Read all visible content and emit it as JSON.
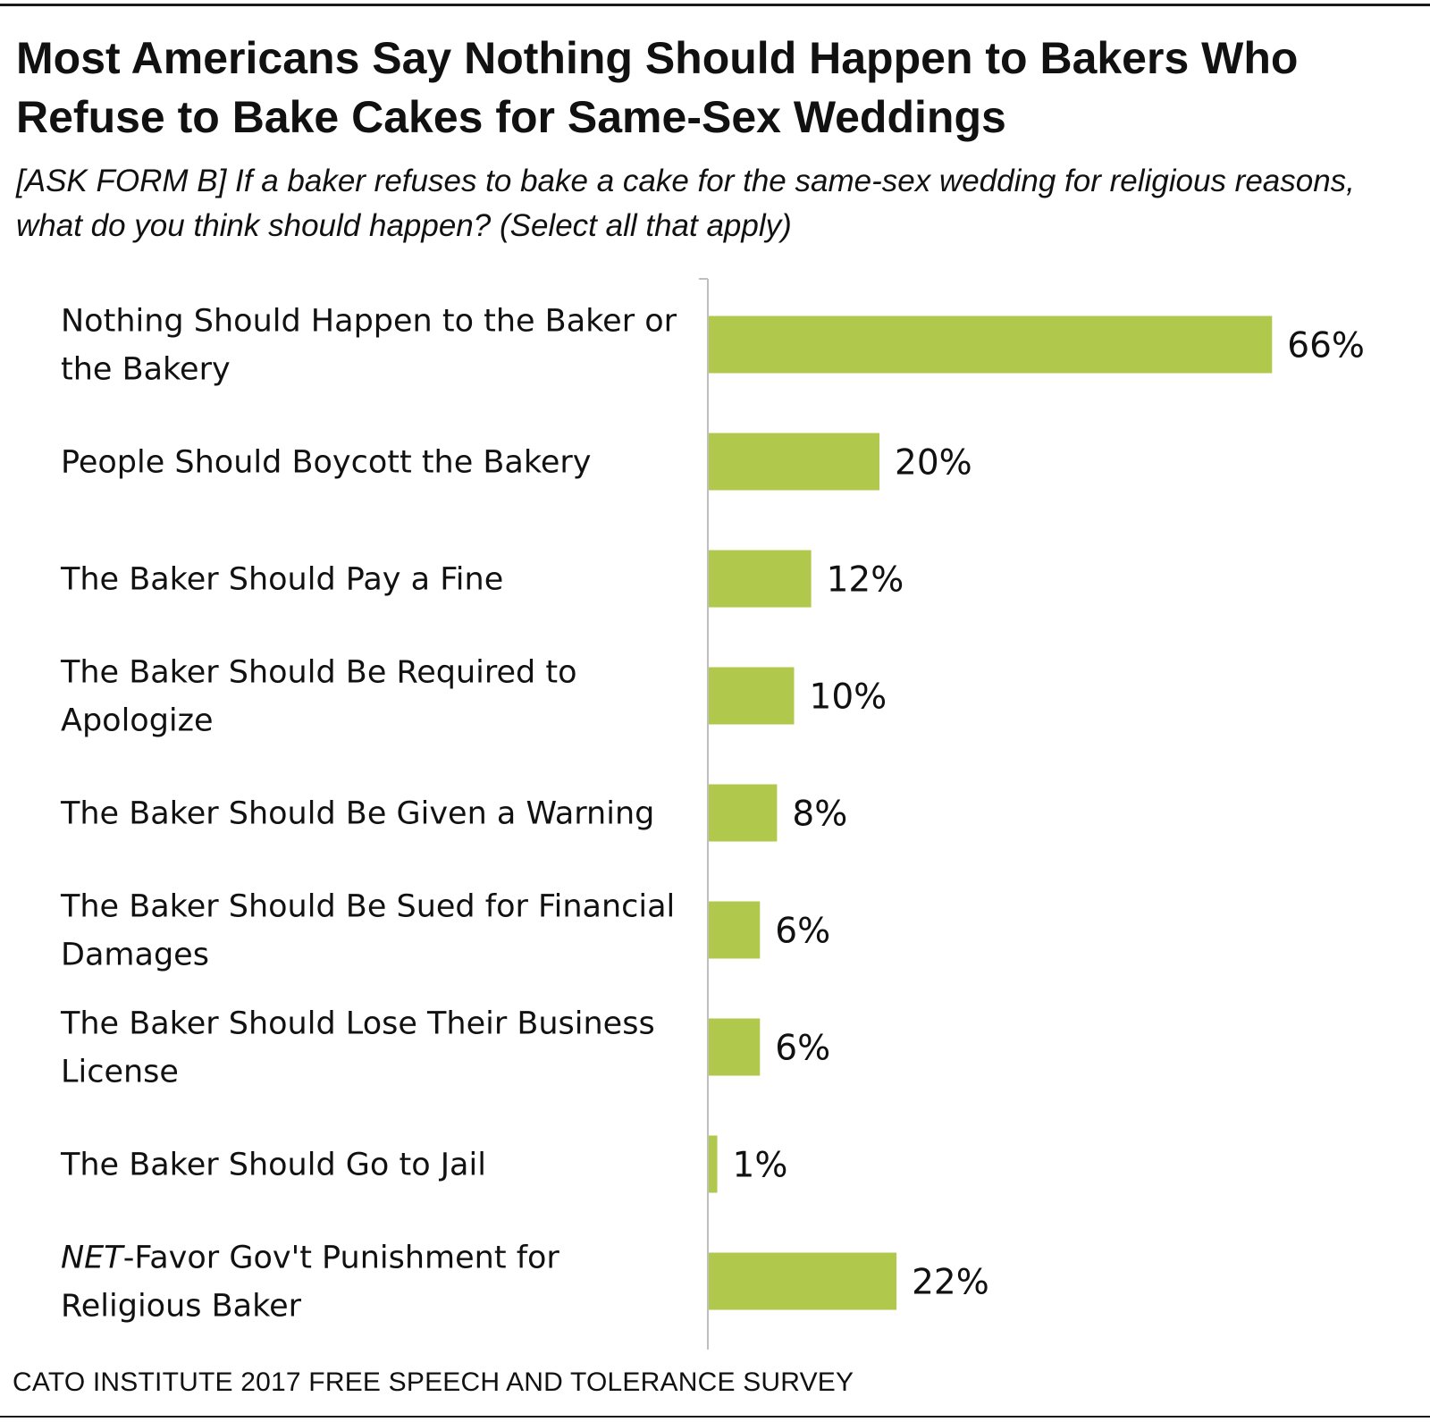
{
  "title": "Most Americans Say Nothing Should Happen to Bakers Who Refuse to Bake Cakes for Same-Sex Weddings",
  "subtitle": "[ASK FORM B] If a baker refuses to bake a cake for the same-sex wedding for religious reasons, what do you think should happen? (Select all that apply)",
  "source": "CATO INSTITUTE 2017 FREE SPEECH AND TOLERANCE SURVEY",
  "colors": {
    "bar": "#b0c94d",
    "axis": "#bfbfbf",
    "text": "#111111"
  },
  "chart_data": {
    "type": "bar",
    "orientation": "horizontal",
    "categories": [
      "Nothing Should Happen to the Baker or the Bakery",
      "People Should Boycott the Bakery",
      "The Baker Should Pay a Fine",
      "The Baker Should Be Required to Apologize",
      "The Baker Should Be Given a Warning",
      "The Baker Should Be Sued for Financial Damages",
      "The Baker Should Lose Their Business License",
      "The Baker Should Go to Jail",
      "NET-Favor Gov't Punishment for Religious Baker"
    ],
    "values": [
      66,
      20,
      12,
      10,
      8,
      6,
      6,
      1,
      22
    ],
    "value_labels": [
      "66%",
      "20%",
      "12%",
      "10%",
      "8%",
      "6%",
      "6%",
      "1%",
      "22%"
    ],
    "unit": "%",
    "xlim": [
      0,
      100
    ],
    "grid": false,
    "legend": "none"
  }
}
